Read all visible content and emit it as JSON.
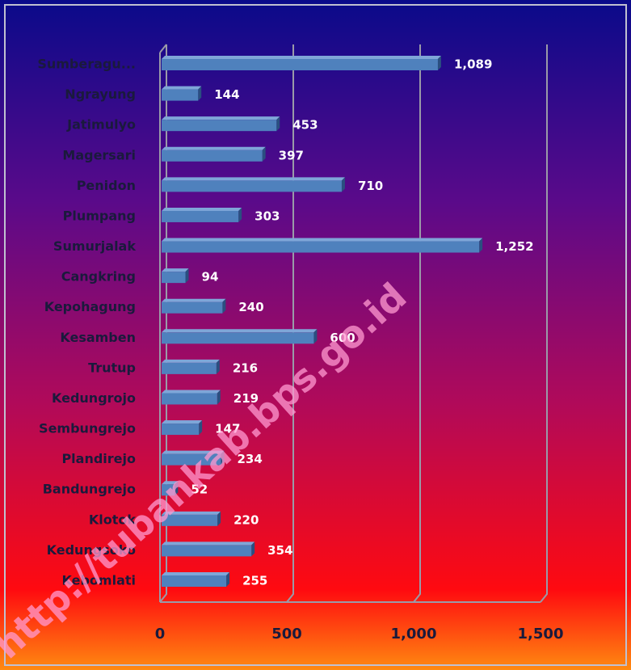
{
  "chart_data": {
    "type": "bar",
    "orientation": "horizontal",
    "categories": [
      "Sumberagu...",
      "Ngrayung",
      "Jatimulyo",
      "Magersari",
      "Penidon",
      "Plumpang",
      "Sumurjalak",
      "Cangkring",
      "Kepohagung",
      "Kesamben",
      "Trutup",
      "Kedungrojo",
      "Sembungrejo",
      "Plandirejo",
      "Bandungrejo",
      "Klotok",
      "Kedungsoko",
      "Kebomlati"
    ],
    "values": [
      1089,
      144,
      453,
      397,
      710,
      303,
      1252,
      94,
      240,
      600,
      216,
      219,
      147,
      234,
      52,
      220,
      354,
      255
    ],
    "value_labels": [
      "1,089",
      "144",
      "453",
      "397",
      "710",
      "303",
      "1,252",
      "94",
      "240",
      "600",
      "216",
      "219",
      "147",
      "234",
      "52",
      "220",
      "354",
      "255"
    ],
    "color": "#4f81bd",
    "xlim": [
      0,
      1500
    ],
    "xticks": [
      0,
      500,
      {
        "value": 1000,
        "label": "1,000"
      },
      {
        "value": 1500,
        "label": "1,500"
      }
    ],
    "grid": true,
    "watermark": "http://tubankab.bps.go.id"
  }
}
